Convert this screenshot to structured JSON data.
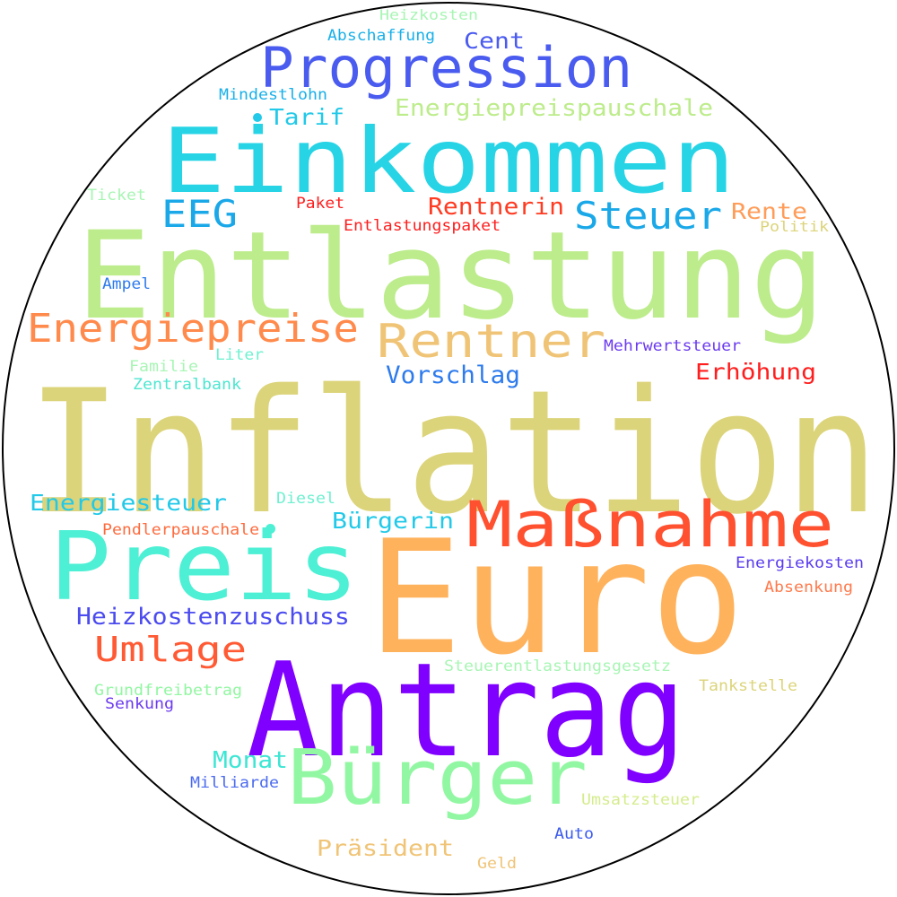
{
  "words": [
    {
      "text": "Inflation",
      "color": "#dcd47a"
    },
    {
      "text": "Entlastung",
      "color": "#bdec8c"
    },
    {
      "text": "Euro",
      "color": "#ffb25c"
    },
    {
      "text": "Antrag",
      "color": "#8000ff"
    },
    {
      "text": "Einkommen",
      "color": "#26d4e6"
    },
    {
      "text": "Preis",
      "color": "#4df0d4"
    },
    {
      "text": "Maßnahme",
      "color": "#ff5030"
    },
    {
      "text": "Bürger",
      "color": "#92f7a2"
    },
    {
      "text": "Progression",
      "color": "#4a5bef"
    },
    {
      "text": "Rentner",
      "color": "#f0c476"
    },
    {
      "text": "Energiepreise",
      "color": "#ff8a4c"
    },
    {
      "text": "Steuer",
      "color": "#1aa8e8"
    },
    {
      "text": "EEG",
      "color": "#1aa8e8"
    },
    {
      "text": "Umlage",
      "color": "#ff5a34"
    },
    {
      "text": "Heizkostenzuschuss",
      "color": "#4b4bef"
    },
    {
      "text": "Energiepreispauschale",
      "color": "#bdec8c"
    },
    {
      "text": "Rentnerin",
      "color": "#ff3b22"
    },
    {
      "text": "Rente",
      "color": "#ff9c58"
    },
    {
      "text": "Vorschlag",
      "color": "#2d7bed"
    },
    {
      "text": "Erhöhung",
      "color": "#ff1e1e"
    },
    {
      "text": "Energiesteuer",
      "color": "#22c9e8"
    },
    {
      "text": "Bürgerin",
      "color": "#22c9e8"
    },
    {
      "text": "Präsident",
      "color": "#f0c476"
    },
    {
      "text": "Monat",
      "color": "#3de6d4"
    },
    {
      "text": "Cent",
      "color": "#4a5bef"
    },
    {
      "text": "Tarif",
      "color": "#22c9e8"
    },
    {
      "text": "Heizkosten",
      "color": "#a8f5b4"
    },
    {
      "text": "Abschaffung",
      "color": "#1ab0e8"
    },
    {
      "text": "Mindestlohn",
      "color": "#1ab0e8"
    },
    {
      "text": "Ticket",
      "color": "#a8f5b4"
    },
    {
      "text": "Paket",
      "color": "#ff1e1e"
    },
    {
      "text": "Entlastungspaket",
      "color": "#ff1e1e"
    },
    {
      "text": "Politik",
      "color": "#dcd47a"
    },
    {
      "text": "Ampel",
      "color": "#2d7bed"
    },
    {
      "text": "Mehrwertsteuer",
      "color": "#6c3bef"
    },
    {
      "text": "Familie",
      "color": "#a8f5b4"
    },
    {
      "text": "Liter",
      "color": "#6ef0d0"
    },
    {
      "text": "Zentralbank",
      "color": "#4de6d0"
    },
    {
      "text": "Diesel",
      "color": "#6ef0d0"
    },
    {
      "text": "Pendlerpauschale",
      "color": "#ff6a3c"
    },
    {
      "text": "Energiekosten",
      "color": "#5a3bef"
    },
    {
      "text": "Absenkung",
      "color": "#ff7a4c"
    },
    {
      "text": "Steuerentlastungsgesetz",
      "color": "#a8f5b4"
    },
    {
      "text": "Grundfreibetrag",
      "color": "#92f7a2"
    },
    {
      "text": "Tankstelle",
      "color": "#dcd47a"
    },
    {
      "text": "Senkung",
      "color": "#6c3bef"
    },
    {
      "text": "Milliarde",
      "color": "#4b6bef"
    },
    {
      "text": "Umsatzsteuer",
      "color": "#d4ec8c"
    },
    {
      "text": "Auto",
      "color": "#3b5bef"
    },
    {
      "text": "Geld",
      "color": "#f0c476"
    }
  ],
  "dots": [
    {
      "color": "#22c9e8"
    },
    {
      "color": "#4df0d4"
    }
  ],
  "frame": {
    "border_color": "#000000",
    "background": "#ffffff"
  }
}
